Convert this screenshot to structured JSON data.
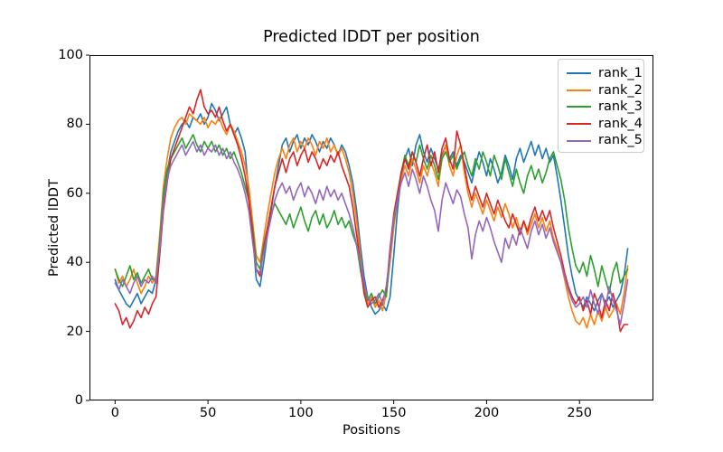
{
  "chart_data": {
    "type": "line",
    "title": "Predicted lDDT per position",
    "xlabel": "Positions",
    "ylabel": "Predicted lDDT",
    "xlim": [
      -13.8,
      289.8
    ],
    "ylim": [
      0,
      100
    ],
    "xticks": [
      0,
      50,
      100,
      150,
      200,
      250
    ],
    "yticks": [
      0,
      20,
      40,
      60,
      80,
      100
    ],
    "grid": false,
    "legend_position": "upper right",
    "line_width": 1.6,
    "x_start": 0,
    "x_step": 2,
    "series": [
      {
        "name": "rank_1",
        "color": "#1f77b4",
        "values": [
          35,
          32,
          30,
          28,
          27,
          29,
          31,
          28,
          30,
          32,
          31,
          35,
          45,
          58,
          66,
          72,
          75,
          78,
          80,
          81,
          79,
          82,
          81,
          83,
          80,
          82,
          86,
          84,
          81,
          83,
          85,
          80,
          77,
          79,
          76,
          72,
          60,
          48,
          35,
          33,
          40,
          48,
          55,
          62,
          68,
          74,
          76,
          72,
          75,
          77,
          73,
          76,
          74,
          77,
          75,
          72,
          75,
          73,
          76,
          74,
          71,
          74,
          72,
          68,
          63,
          55,
          45,
          36,
          30,
          27,
          25,
          26,
          28,
          26,
          30,
          42,
          55,
          65,
          70,
          73,
          68,
          74,
          77,
          72,
          69,
          73,
          70,
          67,
          71,
          74,
          70,
          72,
          68,
          71,
          69,
          66,
          63,
          68,
          72,
          69,
          65,
          70,
          67,
          63,
          66,
          71,
          68,
          64,
          70,
          73,
          69,
          72,
          75,
          71,
          74,
          70,
          73,
          69,
          71,
          65,
          58,
          50,
          42,
          36,
          31,
          29,
          27,
          30,
          28,
          26,
          29,
          31,
          28,
          30,
          27,
          29,
          31,
          36,
          44
        ]
      },
      {
        "name": "rank_2",
        "color": "#ff7f0e",
        "values": [
          38,
          34,
          36,
          33,
          35,
          38,
          34,
          31,
          33,
          36,
          34,
          36,
          48,
          62,
          70,
          76,
          79,
          81,
          82,
          80,
          83,
          82,
          81,
          80,
          82,
          79,
          81,
          80,
          82,
          79,
          77,
          80,
          78,
          75,
          72,
          68,
          62,
          52,
          42,
          40,
          47,
          54,
          60,
          66,
          70,
          73,
          70,
          74,
          76,
          72,
          75,
          73,
          76,
          74,
          71,
          75,
          73,
          76,
          72,
          74,
          71,
          73,
          70,
          66,
          60,
          52,
          42,
          33,
          28,
          30,
          27,
          29,
          26,
          31,
          40,
          50,
          58,
          64,
          68,
          65,
          70,
          67,
          63,
          68,
          65,
          69,
          66,
          62,
          70,
          74,
          68,
          65,
          71,
          74,
          66,
          60,
          56,
          60,
          57,
          54,
          58,
          55,
          52,
          56,
          53,
          57,
          54,
          50,
          53,
          49,
          52,
          48,
          51,
          54,
          50,
          53,
          49,
          52,
          47,
          44,
          40,
          35,
          30,
          26,
          23,
          22,
          24,
          21,
          25,
          22,
          26,
          23,
          27,
          24,
          26,
          28,
          25,
          31,
          39
        ]
      },
      {
        "name": "rank_3",
        "color": "#2ca02c",
        "values": [
          38,
          35,
          33,
          36,
          39,
          35,
          37,
          34,
          36,
          38,
          35,
          35,
          46,
          60,
          67,
          70,
          72,
          74,
          76,
          73,
          75,
          77,
          74,
          72,
          75,
          73,
          75,
          72,
          74,
          71,
          73,
          70,
          72,
          69,
          66,
          62,
          58,
          50,
          40,
          38,
          45,
          50,
          54,
          57,
          55,
          53,
          51,
          54,
          50,
          53,
          56,
          52,
          49,
          53,
          55,
          51,
          54,
          50,
          52,
          55,
          51,
          53,
          50,
          52,
          48,
          45,
          38,
          32,
          29,
          31,
          28,
          30,
          32,
          30,
          42,
          52,
          58,
          66,
          71,
          68,
          72,
          69,
          74,
          70,
          67,
          71,
          68,
          64,
          70,
          72,
          69,
          71,
          67,
          70,
          72,
          68,
          65,
          70,
          67,
          72,
          69,
          65,
          71,
          68,
          64,
          70,
          66,
          62,
          67,
          63,
          60,
          65,
          68,
          64,
          67,
          63,
          66,
          70,
          72,
          68,
          64,
          58,
          50,
          44,
          39,
          37,
          40,
          36,
          42,
          38,
          33,
          39,
          35,
          31,
          37,
          40,
          34,
          36,
          38
        ]
      },
      {
        "name": "rank_4",
        "color": "#d62728",
        "values": [
          28,
          26,
          22,
          24,
          21,
          23,
          26,
          24,
          27,
          25,
          28,
          30,
          42,
          55,
          63,
          70,
          73,
          76,
          79,
          82,
          85,
          83,
          87,
          90,
          85,
          83,
          84,
          82,
          85,
          81,
          78,
          80,
          77,
          74,
          70,
          65,
          58,
          48,
          38,
          36,
          44,
          50,
          56,
          62,
          66,
          70,
          66,
          70,
          72,
          68,
          71,
          73,
          69,
          72,
          70,
          67,
          70,
          68,
          71,
          69,
          72,
          68,
          65,
          62,
          56,
          48,
          40,
          31,
          27,
          29,
          30,
          27,
          29,
          32,
          44,
          54,
          60,
          66,
          70,
          67,
          72,
          69,
          65,
          70,
          74,
          68,
          72,
          66,
          73,
          76,
          70,
          67,
          78,
          74,
          68,
          62,
          58,
          62,
          59,
          56,
          60,
          57,
          54,
          58,
          55,
          52,
          50,
          54,
          51,
          48,
          52,
          49,
          53,
          56,
          52,
          55,
          52,
          55,
          50,
          46,
          42,
          37,
          33,
          30,
          28,
          30,
          26,
          29,
          25,
          31,
          28,
          24,
          29,
          26,
          31,
          27,
          20,
          22,
          22
        ]
      },
      {
        "name": "rank_5",
        "color": "#9467bd",
        "values": [
          34,
          32,
          35,
          33,
          31,
          34,
          36,
          33,
          35,
          34,
          36,
          34,
          44,
          57,
          64,
          68,
          70,
          72,
          74,
          71,
          73,
          75,
          72,
          74,
          71,
          73,
          72,
          74,
          71,
          73,
          70,
          72,
          69,
          67,
          64,
          60,
          55,
          46,
          38,
          37,
          43,
          48,
          53,
          58,
          61,
          63,
          60,
          62,
          58,
          61,
          63,
          59,
          62,
          60,
          57,
          61,
          58,
          62,
          59,
          61,
          58,
          60,
          57,
          54,
          50,
          45,
          40,
          34,
          30,
          28,
          29,
          31,
          28,
          33,
          42,
          53,
          58,
          63,
          66,
          62,
          67,
          64,
          60,
          65,
          62,
          58,
          55,
          49,
          58,
          63,
          60,
          57,
          61,
          59,
          54,
          50,
          41,
          48,
          52,
          49,
          53,
          50,
          46,
          43,
          40,
          47,
          44,
          48,
          45,
          50,
          47,
          44,
          49,
          52,
          48,
          51,
          47,
          50,
          46,
          43,
          40,
          36,
          32,
          29,
          27,
          28,
          30,
          27,
          32,
          28,
          25,
          31,
          27,
          33,
          29,
          26,
          22,
          28,
          35
        ]
      }
    ]
  }
}
